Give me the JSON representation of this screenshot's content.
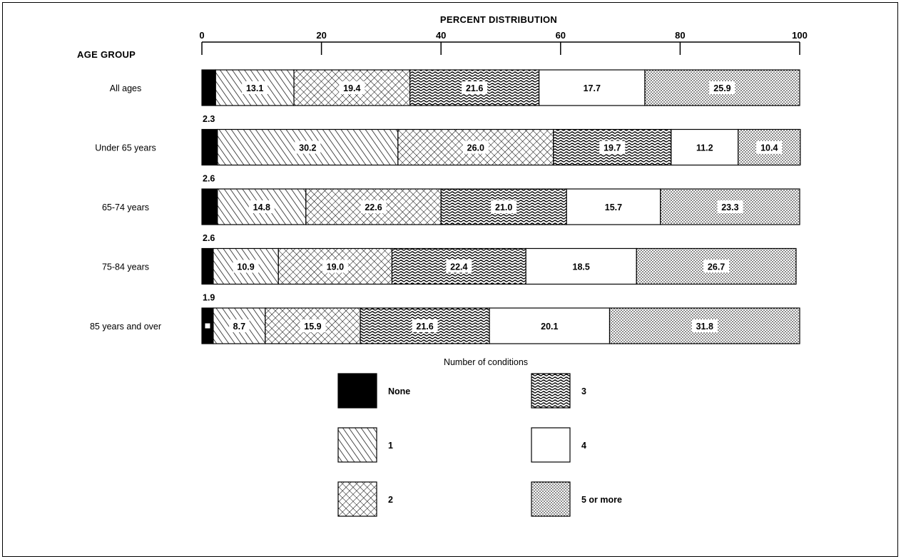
{
  "chart_data": {
    "type": "bar",
    "orientation": "horizontal",
    "stacked": true,
    "title": "PERCENT DISTRIBUTION",
    "ylabel": "AGE GROUP",
    "xlim": [
      0,
      100
    ],
    "xticks": [
      "0",
      "20",
      "40",
      "60",
      "80",
      "100"
    ],
    "legend_title": "Number of conditions",
    "legend_position": "bottom",
    "categories": [
      "All ages",
      "Under 65 years",
      "65-74 years",
      "75-84 years",
      "85 years and over"
    ],
    "series": [
      {
        "name": "None",
        "pattern": "solid",
        "values": [
          2.3,
          2.6,
          2.6,
          1.9,
          1.9
        ],
        "labels": [
          "",
          "",
          "",
          "",
          ""
        ]
      },
      {
        "name": "1",
        "pattern": "diagonal",
        "values": [
          13.1,
          30.2,
          14.8,
          10.9,
          8.7
        ],
        "labels": [
          "13.1",
          "30.2",
          "14.8",
          "10.9",
          "8.7"
        ]
      },
      {
        "name": "2",
        "pattern": "crosshatch",
        "values": [
          19.4,
          26.0,
          22.6,
          19.0,
          15.9
        ],
        "labels": [
          "19.4",
          "26.0",
          "22.6",
          "19.0",
          "15.9"
        ]
      },
      {
        "name": "3",
        "pattern": "wavy",
        "values": [
          21.6,
          19.7,
          21.0,
          22.4,
          21.6
        ],
        "labels": [
          "21.6",
          "19.7",
          "21.0",
          "22.4",
          "21.6"
        ]
      },
      {
        "name": "4",
        "pattern": "white",
        "values": [
          17.7,
          11.2,
          15.7,
          18.5,
          20.1
        ],
        "labels": [
          "17.7",
          "11.2",
          "15.7",
          "18.5",
          "20.1"
        ]
      },
      {
        "name": "5 or more",
        "pattern": "dots",
        "values": [
          25.9,
          10.4,
          23.3,
          26.7,
          31.8
        ],
        "labels": [
          "25.9",
          "10.4",
          "23.3",
          "26.7",
          "31.8"
        ]
      }
    ],
    "none_annotations": [
      "2.3",
      "2.6",
      "2.6",
      "1.9"
    ],
    "colors": {
      "ink": "#000000",
      "background": "#ffffff"
    }
  }
}
